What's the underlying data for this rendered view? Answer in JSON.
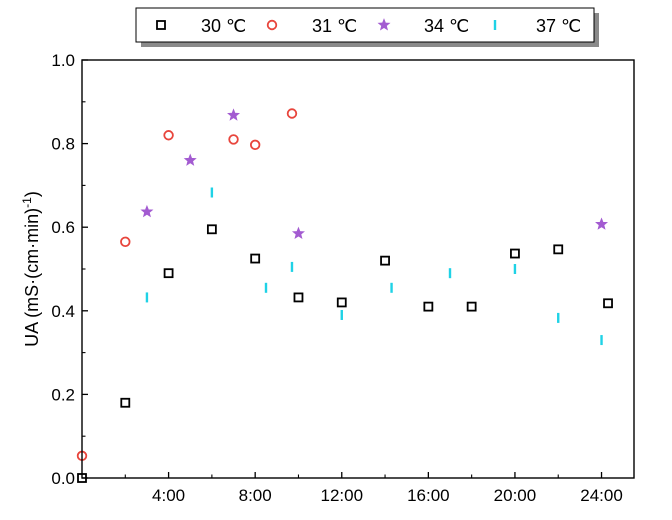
{
  "chart_data": {
    "type": "scatter",
    "xlabel": "",
    "ylabel": "UA (mS·(cm·min)",
    "ylabel_sup": "-1",
    "ylabel_close": ")",
    "xlim": [
      0,
      25.5
    ],
    "ylim": [
      0,
      1.0
    ],
    "x_ticks": [
      {
        "value": 4,
        "label": "4:00"
      },
      {
        "value": 8,
        "label": "8:00"
      },
      {
        "value": 12,
        "label": "12:00"
      },
      {
        "value": 16,
        "label": "16:00"
      },
      {
        "value": 20,
        "label": "20:00"
      },
      {
        "value": 24,
        "label": "24:00"
      }
    ],
    "y_ticks": [
      {
        "value": 0.0,
        "label": "0.0"
      },
      {
        "value": 0.2,
        "label": "0.2"
      },
      {
        "value": 0.4,
        "label": "0.4"
      },
      {
        "value": 0.6,
        "label": "0.6"
      },
      {
        "value": 0.8,
        "label": "0.8"
      },
      {
        "value": 1.0,
        "label": "1.0"
      }
    ],
    "legend_position": "top",
    "series": [
      {
        "name": "30 ℃",
        "marker": "square",
        "color": "#000000",
        "x": [
          0,
          2,
          4,
          6,
          8,
          10,
          12,
          14,
          16,
          18,
          20,
          22,
          24.3
        ],
        "y": [
          0.0,
          0.18,
          0.49,
          0.595,
          0.525,
          0.432,
          0.42,
          0.52,
          0.41,
          0.41,
          0.537,
          0.547,
          0.418
        ]
      },
      {
        "name": "31 ℃",
        "marker": "circle",
        "color": "#e8453c",
        "x": [
          0,
          2,
          4,
          7,
          8,
          9.7
        ],
        "y": [
          0.053,
          0.565,
          0.82,
          0.81,
          0.797,
          0.872
        ]
      },
      {
        "name": "34 ℃",
        "marker": "star",
        "color": "#a35bd1",
        "x": [
          3,
          5,
          7,
          10,
          24
        ],
        "y": [
          0.637,
          0.76,
          0.868,
          0.585,
          0.607
        ]
      },
      {
        "name": "37 ℃",
        "marker": "dash",
        "color": "#1fd2e6",
        "x": [
          3,
          6,
          8.5,
          9.7,
          12,
          14.3,
          17,
          20,
          22,
          24
        ],
        "y": [
          0.432,
          0.683,
          0.455,
          0.505,
          0.39,
          0.455,
          0.49,
          0.5,
          0.383,
          0.33
        ]
      }
    ]
  }
}
